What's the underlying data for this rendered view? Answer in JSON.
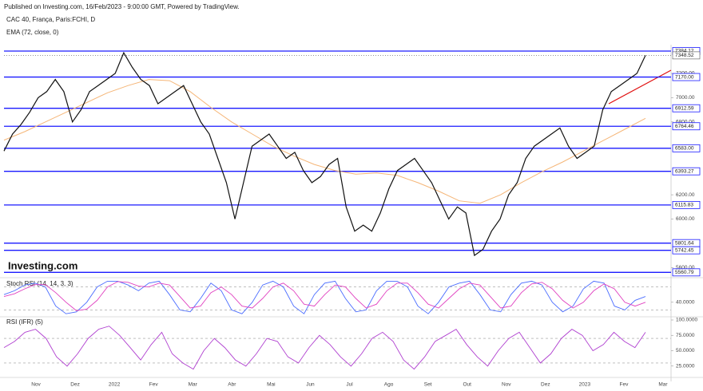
{
  "header": {
    "published": "Published on Investing.com, 16/Feb/2023 - 9:00:00 GMT, Powered by TradingView.",
    "symbol": "CAC 40, França, Paris:FCHI, D",
    "indicator": "EMA (72, close, 0)"
  },
  "logo": "Investing.com",
  "x_axis_labels": [
    "Nov",
    "Dez",
    "2022",
    "Fev",
    "Mar",
    "Abr",
    "Mai",
    "Jun",
    "Jul",
    "Ago",
    "Set",
    "Out",
    "Nov",
    "Dez",
    "2023",
    "Fev",
    "Mar"
  ],
  "chart_data": [
    {
      "type": "line",
      "color": "#111111",
      "ema_color": "#f5b678",
      "level_color": "#1a1aff",
      "values": [
        6560,
        6700,
        6780,
        6880,
        7000,
        7050,
        7150,
        7050,
        6800,
        6900,
        7050,
        7100,
        7150,
        7200,
        7370,
        7250,
        7150,
        7100,
        6950,
        7000,
        7050,
        7100,
        6950,
        6800,
        6700,
        6500,
        6300,
        6000,
        6300,
        6600,
        6650,
        6700,
        6600,
        6500,
        6550,
        6400,
        6300,
        6350,
        6450,
        6500,
        6100,
        5900,
        5950,
        5900,
        6050,
        6250,
        6400,
        6450,
        6500,
        6400,
        6300,
        6150,
        6000,
        6100,
        6050,
        5700,
        5750,
        5900,
        6000,
        6200,
        6300,
        6500,
        6600,
        6650,
        6700,
        6750,
        6600,
        6500,
        6550,
        6600,
        6900,
        7050,
        7100,
        7150,
        7200,
        7348.52
      ],
      "ema_values": [
        6650,
        6720,
        6800,
        6880,
        6960,
        7040,
        7100,
        7150,
        7140,
        7050,
        6920,
        6800,
        6700,
        6600,
        6520,
        6450,
        6400,
        6370,
        6380,
        6360,
        6300,
        6230,
        6150,
        6130,
        6200,
        6300,
        6390,
        6470,
        6560,
        6650,
        6740,
        6830
      ],
      "ylim": [
        5530,
        7430
      ],
      "yticks": [
        {
          "value": 7200,
          "label": "7200.00"
        },
        {
          "value": 7000,
          "label": "7000.00"
        },
        {
          "value": 6800,
          "label": "6800.00"
        },
        {
          "value": 6200,
          "label": "6200.00"
        },
        {
          "value": 6000,
          "label": "6000.00"
        },
        {
          "value": 5600,
          "label": "5600.00"
        }
      ],
      "levels": [
        {
          "value": 7384.12,
          "label": "7384.12"
        },
        {
          "value": 7170,
          "label": "7170.00"
        },
        {
          "value": 6912.59,
          "label": "6912.59"
        },
        {
          "value": 6764.46,
          "label": "6764.46"
        },
        {
          "value": 6583,
          "label": "6583.00"
        },
        {
          "value": 6393.27,
          "label": "6393.27"
        },
        {
          "value": 6115.83,
          "label": "6115.83"
        },
        {
          "value": 5801.64,
          "label": "5801.64"
        },
        {
          "value": 5742.45,
          "label": "5742.45"
        },
        {
          "value": 5560.79,
          "label": "5560.79"
        }
      ],
      "current": {
        "value": 7348.52,
        "label": "7348.52"
      }
    },
    {
      "type": "line",
      "title": "Stoch RSI (14, 14, 3, 3)",
      "series": [
        {
          "color": "#4a6cff",
          "values": [
            60,
            70,
            85,
            90,
            80,
            30,
            10,
            15,
            40,
            80,
            95,
            95,
            85,
            70,
            90,
            95,
            60,
            20,
            15,
            50,
            90,
            70,
            20,
            10,
            40,
            85,
            95,
            80,
            30,
            10,
            60,
            90,
            95,
            50,
            15,
            20,
            70,
            95,
            95,
            80,
            30,
            10,
            40,
            80,
            90,
            95,
            60,
            20,
            15,
            60,
            90,
            95,
            85,
            40,
            15,
            30,
            75,
            95,
            90,
            30,
            20,
            45,
            55
          ]
        },
        {
          "color": "#e040c0",
          "values": [
            55,
            62,
            75,
            86,
            86,
            65,
            40,
            18,
            22,
            45,
            80,
            94,
            92,
            82,
            80,
            90,
            85,
            55,
            25,
            30,
            65,
            80,
            60,
            30,
            25,
            50,
            80,
            90,
            70,
            35,
            30,
            60,
            85,
            80,
            50,
            25,
            35,
            70,
            90,
            90,
            65,
            35,
            25,
            50,
            75,
            90,
            85,
            55,
            25,
            30,
            65,
            88,
            92,
            75,
            45,
            25,
            40,
            70,
            88,
            75,
            40,
            30,
            40
          ]
        }
      ],
      "ylim": [
        0,
        100
      ],
      "yticks": [
        {
          "value": 40,
          "label": "40.0000"
        }
      ],
      "reference_lines": [
        80,
        20
      ]
    },
    {
      "type": "line",
      "title": "RSI (IFR) (5)",
      "color": "#b040d0",
      "values": [
        55,
        65,
        80,
        85,
        70,
        40,
        25,
        45,
        70,
        85,
        90,
        75,
        55,
        35,
        60,
        80,
        45,
        30,
        20,
        50,
        70,
        55,
        35,
        25,
        45,
        70,
        65,
        40,
        30,
        55,
        75,
        60,
        40,
        25,
        45,
        70,
        80,
        65,
        35,
        20,
        40,
        65,
        75,
        85,
        60,
        40,
        25,
        50,
        70,
        80,
        55,
        30,
        45,
        70,
        85,
        75,
        50,
        60,
        80,
        65,
        55,
        80
      ],
      "ylim": [
        0,
        100
      ],
      "yticks": [
        {
          "value": 100,
          "label": "100.0000"
        },
        {
          "value": 75,
          "label": "75.0000"
        },
        {
          "value": 50,
          "label": "50.0000"
        },
        {
          "value": 25,
          "label": "25.0000"
        }
      ],
      "reference_lines": [
        70,
        30
      ]
    }
  ]
}
